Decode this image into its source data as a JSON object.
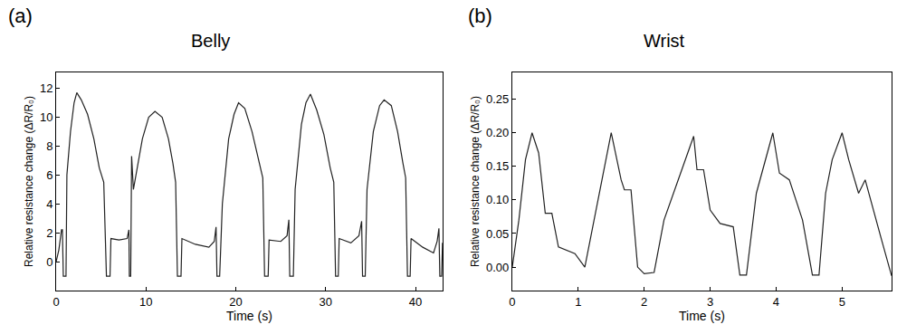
{
  "chart_data": [
    {
      "type": "line",
      "title": "Belly",
      "annotations": [
        "(a)"
      ],
      "x_label": "Time (s)",
      "y_label": "Relative resistance change (ΔR/R₀)",
      "color": "#222222",
      "x": [
        0,
        0.3,
        0.6,
        0.7,
        0.8,
        1.1,
        1.2,
        1.6,
        2.0,
        2.3,
        2.8,
        3.5,
        4.2,
        4.8,
        5.3,
        5.6,
        6.0,
        6.1,
        7.0,
        7.9,
        8.1,
        8.15,
        8.3,
        8.4,
        8.6,
        9.0,
        9.6,
        10.3,
        11.0,
        11.8,
        12.5,
        13.0,
        13.3,
        13.5,
        13.9,
        14.0,
        15.5,
        17.0,
        17.6,
        17.8,
        17.9,
        18.2,
        18.5,
        19.2,
        19.8,
        20.3,
        21.0,
        21.8,
        22.5,
        23.0,
        23.2,
        23.6,
        23.7,
        25.0,
        25.7,
        25.9,
        26.0,
        26.4,
        26.6,
        27.3,
        27.8,
        28.3,
        29.0,
        29.8,
        30.5,
        30.9,
        31.1,
        31.4,
        31.5,
        32.8,
        33.7,
        34.0,
        34.1,
        34.4,
        34.6,
        35.3,
        36.0,
        36.5,
        37.3,
        38.0,
        38.6,
        38.9,
        39.1,
        39.4,
        39.5,
        40.8,
        42.0,
        42.4,
        42.6,
        42.7,
        42.9,
        43.0
      ],
      "values": [
        0,
        0.8,
        2.2,
        2.2,
        -1,
        -1,
        6,
        9,
        11,
        11.7,
        11.2,
        10.2,
        8.5,
        6.5,
        5.5,
        -1,
        -1,
        1.6,
        1.5,
        1.6,
        2.2,
        -1,
        -1,
        7.3,
        5,
        6.5,
        8.5,
        10.0,
        10.4,
        10,
        8.5,
        6.8,
        5.5,
        -1,
        -1,
        1.6,
        1.2,
        1.0,
        1.4,
        2.4,
        -1,
        -1,
        4,
        8.5,
        10.2,
        11.0,
        10.6,
        9,
        7.2,
        5.8,
        -1,
        -1,
        1.5,
        1.4,
        1.8,
        2.9,
        -1,
        -1,
        5,
        9.5,
        11,
        11.6,
        10.5,
        8.8,
        6.5,
        5.5,
        -1,
        -1,
        1.6,
        1.3,
        1.8,
        2.8,
        -1,
        -1,
        5,
        9,
        10.8,
        11.2,
        10.8,
        9,
        6.8,
        5.8,
        -1,
        -1,
        1.6,
        1.0,
        0.6,
        1.4,
        2.3,
        -1,
        -1,
        1.3
      ],
      "xlim": [
        0,
        43
      ],
      "xticks": [
        0,
        10,
        20,
        30,
        40
      ],
      "ylim": [
        -2,
        13.1
      ],
      "yticks": [
        0,
        2,
        4,
        6,
        8,
        10,
        12
      ],
      "grid": false
    },
    {
      "type": "line",
      "title": "Wrist",
      "annotations": [
        "(b)"
      ],
      "x_label": "Time (s)",
      "y_label": "Relative resistance change (ΔR/R₀)",
      "color": "#222222",
      "x": [
        0,
        0.1,
        0.2,
        0.3,
        0.4,
        0.5,
        0.6,
        0.7,
        0.95,
        1.1,
        1.3,
        1.5,
        1.65,
        1.7,
        1.8,
        1.9,
        2.0,
        2.15,
        2.3,
        2.55,
        2.75,
        2.8,
        2.9,
        3.0,
        3.15,
        3.35,
        3.45,
        3.55,
        3.7,
        3.95,
        4.05,
        4.2,
        4.4,
        4.55,
        4.65,
        4.75,
        4.85,
        5.0,
        5.1,
        5.25,
        5.35,
        5.6,
        5.75
      ],
      "values": [
        0,
        0.07,
        0.16,
        0.2,
        0.17,
        0.08,
        0.08,
        0.03,
        0.02,
        0.0,
        0.1,
        0.2,
        0.13,
        0.115,
        0.115,
        0.0,
        -0.01,
        -0.008,
        0.07,
        0.14,
        0.195,
        0.145,
        0.145,
        0.085,
        0.065,
        0.06,
        -0.012,
        -0.012,
        0.11,
        0.2,
        0.14,
        0.13,
        0.07,
        -0.012,
        -0.012,
        0.11,
        0.16,
        0.2,
        0.16,
        0.11,
        0.13,
        0.04,
        -0.013
      ],
      "xlim": [
        0,
        5.75
      ],
      "xticks": [
        0,
        1,
        2,
        3,
        4,
        5
      ],
      "ylim": [
        -0.035,
        0.29
      ],
      "yticks": [
        {
          "value": 0,
          "label": "0.00"
        },
        {
          "value": 0.05,
          "label": "0.05"
        },
        {
          "value": 0.1,
          "label": "0.10"
        },
        {
          "value": 0.15,
          "label": "0.15"
        },
        {
          "value": 0.2,
          "label": "0.20"
        },
        {
          "value": 0.25,
          "label": "0.25"
        }
      ],
      "grid": false
    }
  ]
}
